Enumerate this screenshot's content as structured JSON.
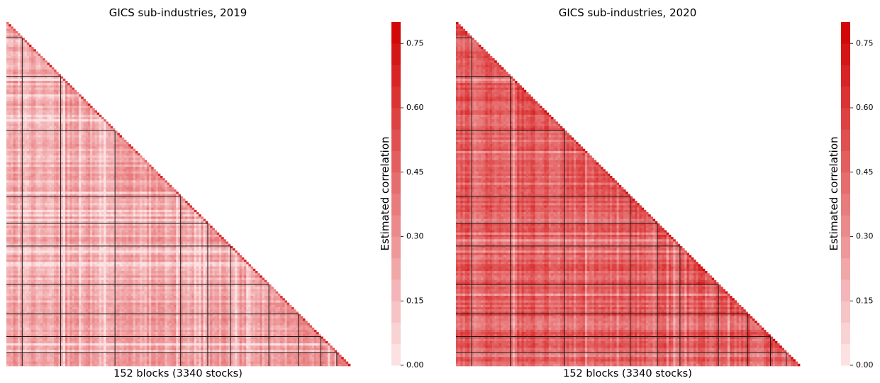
{
  "chart_data": [
    {
      "type": "heatmap",
      "title": "GICS sub-industries, 2019",
      "xlabel": "152 blocks (3340 stocks)",
      "ylabel": "",
      "n_blocks": 152,
      "shape": "lower-triangular",
      "block_group_boundaries": [
        7,
        24,
        48,
        77,
        89,
        99,
        116,
        129,
        139,
        146
      ],
      "colorbar": {
        "label": "Estimated correlation",
        "range": [
          0.0,
          0.8
        ],
        "ticks": [
          "0.00",
          "0.15",
          "0.30",
          "0.45",
          "0.60",
          "0.75"
        ],
        "levels": 16
      },
      "summary": {
        "typical_correlation": 0.22,
        "diagonal_correlation_range": [
          0.3,
          0.75
        ]
      }
    },
    {
      "type": "heatmap",
      "title": "GICS sub-industries, 2020",
      "xlabel": "152 blocks (3340 stocks)",
      "ylabel": "",
      "n_blocks": 152,
      "shape": "lower-triangular",
      "block_group_boundaries": [
        7,
        24,
        48,
        77,
        89,
        99,
        116,
        129,
        139,
        146
      ],
      "colorbar": {
        "label": "Estimated correlation",
        "range": [
          0.0,
          0.8
        ],
        "ticks": [
          "0.00",
          "0.15",
          "0.30",
          "0.45",
          "0.60",
          "0.75"
        ],
        "levels": 16
      },
      "summary": {
        "typical_correlation": 0.48,
        "diagonal_correlation_range": [
          0.45,
          0.8
        ]
      }
    }
  ],
  "colors": {
    "colormap_low": "#fde8ea",
    "colormap_high": "#d10000",
    "block_border": "#1a1a1a"
  }
}
